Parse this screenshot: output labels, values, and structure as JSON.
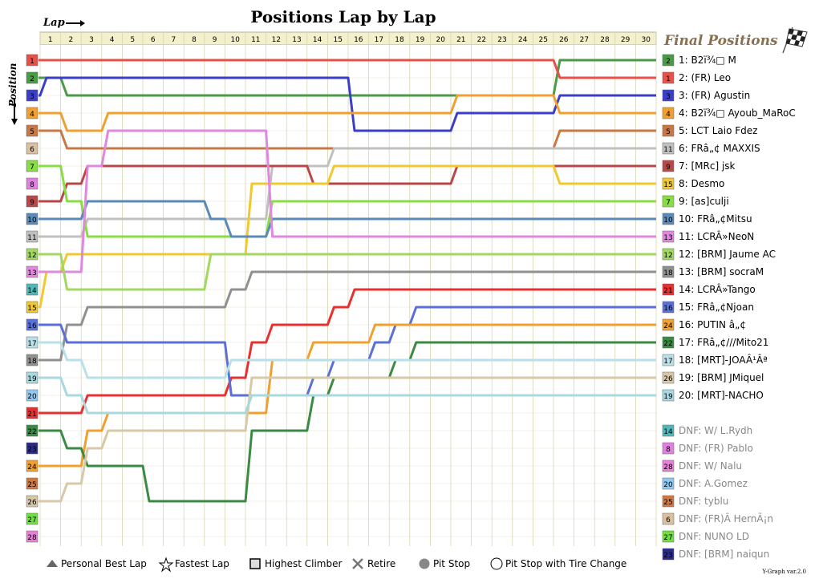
{
  "chart_data": {
    "type": "line",
    "title": "Positions Lap by Lap",
    "x_label": "Lap",
    "y_label": "Position",
    "laps": [
      1,
      2,
      3,
      4,
      5,
      6,
      7,
      8,
      9,
      10,
      11,
      12,
      13,
      14,
      15,
      16,
      17,
      18,
      19,
      20,
      21,
      22,
      23,
      24,
      25,
      26,
      27,
      28,
      29,
      30
    ],
    "positions": [
      1,
      2,
      3,
      4,
      5,
      6,
      7,
      8,
      9,
      10,
      11,
      12,
      13,
      14,
      15,
      16,
      17,
      18,
      19,
      20,
      21,
      22,
      23,
      24,
      25,
      26,
      27,
      28
    ],
    "final_title": "Final Positions",
    "grid_start": [
      "1",
      "2",
      "3",
      "4",
      "5",
      "6",
      "7",
      "8",
      "9",
      "10",
      "11",
      "12",
      "13",
      "14",
      "15",
      "16",
      "17",
      "18",
      "19",
      "20",
      "21",
      "22",
      "23",
      "24",
      "25",
      "26",
      "27",
      "28"
    ],
    "finishers": [
      {
        "pos": "1",
        "grid": "2",
        "name": "B2ï¾□ M",
        "color": "#4a9a48",
        "lap_pos": [
          2,
          3,
          3,
          3,
          3,
          3,
          3,
          3,
          3,
          3,
          3,
          3,
          3,
          3,
          3,
          3,
          3,
          3,
          3,
          3,
          3,
          3,
          3,
          3,
          3,
          1,
          1,
          1,
          1,
          1
        ]
      },
      {
        "pos": "2",
        "grid": "1",
        "name": "(FR) Leo",
        "color": "#e8504a",
        "lap_pos": [
          1,
          1,
          1,
          1,
          1,
          1,
          1,
          1,
          1,
          1,
          1,
          1,
          1,
          1,
          1,
          1,
          1,
          1,
          1,
          1,
          1,
          1,
          1,
          1,
          1,
          2,
          2,
          2,
          2,
          2
        ]
      },
      {
        "pos": "3",
        "grid": "3",
        "name": "(FR) Agustin",
        "color": "#3a3ec8",
        "lap_pos": [
          2,
          2,
          2,
          2,
          2,
          2,
          2,
          2,
          2,
          2,
          2,
          2,
          2,
          2,
          2,
          5,
          5,
          5,
          5,
          5,
          4,
          4,
          4,
          4,
          4,
          3,
          3,
          3,
          3,
          3
        ]
      },
      {
        "pos": "4",
        "grid": "4",
        "name": "B2ï¾□ Ayoub_MaRoC",
        "color": "#f0a030",
        "lap_pos": [
          4,
          5,
          5,
          4,
          4,
          4,
          4,
          4,
          4,
          4,
          4,
          4,
          4,
          4,
          4,
          4,
          4,
          4,
          4,
          4,
          3,
          3,
          3,
          3,
          3,
          4,
          4,
          4,
          4,
          4
        ]
      },
      {
        "pos": "5",
        "grid": "5",
        "name": "LCT Laio Fdez",
        "color": "#c87844",
        "lap_pos": [
          5,
          6,
          6,
          6,
          6,
          6,
          6,
          6,
          6,
          6,
          6,
          6,
          6,
          6,
          6,
          6,
          6,
          6,
          6,
          6,
          6,
          6,
          6,
          6,
          6,
          5,
          5,
          5,
          5,
          5
        ]
      },
      {
        "pos": "6",
        "grid": "11",
        "name": "FRâ„¢ MAXXIS",
        "color": "#c0c0c0",
        "lap_pos": [
          11,
          11,
          10,
          10,
          10,
          10,
          10,
          10,
          10,
          10,
          10,
          7,
          7,
          7,
          6,
          6,
          6,
          6,
          6,
          6,
          6,
          6,
          6,
          6,
          6,
          6,
          6,
          6,
          6,
          6
        ]
      },
      {
        "pos": "7",
        "grid": "9",
        "name": "[MRc] jsk",
        "color": "#b84848",
        "lap_pos": [
          9,
          8,
          7,
          7,
          7,
          7,
          7,
          7,
          7,
          7,
          7,
          7,
          7,
          8,
          8,
          8,
          8,
          8,
          8,
          8,
          7,
          7,
          7,
          7,
          7,
          7,
          7,
          7,
          7,
          7
        ]
      },
      {
        "pos": "8",
        "grid": "15",
        "name": "Desmo",
        "color": "#f0c830",
        "lap_pos": [
          13,
          12,
          12,
          12,
          12,
          12,
          12,
          12,
          12,
          12,
          8,
          8,
          8,
          8,
          7,
          7,
          7,
          7,
          7,
          7,
          7,
          7,
          7,
          7,
          7,
          8,
          8,
          8,
          8,
          8
        ]
      },
      {
        "pos": "9",
        "grid": "7",
        "name": "[as]culji",
        "color": "#88dd44",
        "lap_pos": [
          7,
          9,
          11,
          11,
          11,
          11,
          11,
          11,
          11,
          11,
          11,
          9,
          9,
          9,
          9,
          9,
          9,
          9,
          9,
          9,
          9,
          9,
          9,
          9,
          9,
          9,
          9,
          9,
          9,
          9
        ]
      },
      {
        "pos": "10",
        "grid": "10",
        "name": "FRâ„¢Mitsu",
        "color": "#5a8ab8",
        "lap_pos": [
          10,
          10,
          9,
          9,
          9,
          9,
          9,
          9,
          10,
          11,
          11,
          10,
          10,
          10,
          10,
          10,
          10,
          10,
          10,
          10,
          10,
          10,
          10,
          10,
          10,
          10,
          10,
          10,
          10,
          10
        ]
      },
      {
        "pos": "11",
        "grid": "13",
        "name": "LCRÂ»NeoN",
        "color": "#e088dd",
        "lap_pos": [
          13,
          13,
          7,
          5,
          5,
          5,
          5,
          5,
          5,
          5,
          5,
          11,
          11,
          11,
          11,
          11,
          11,
          11,
          11,
          11,
          11,
          11,
          11,
          11,
          11,
          11,
          11,
          11,
          11,
          11
        ]
      },
      {
        "pos": "12",
        "grid": "12",
        "name": "[BRM] Jaume AC",
        "color": "#a0d860",
        "lap_pos": [
          12,
          14,
          14,
          14,
          14,
          14,
          14,
          14,
          12,
          12,
          12,
          12,
          12,
          12,
          12,
          12,
          12,
          12,
          12,
          12,
          12,
          12,
          12,
          12,
          12,
          12,
          12,
          12,
          12,
          12
        ]
      },
      {
        "pos": "13",
        "grid": "18",
        "name": "[BRM] socraM",
        "color": "#909090",
        "lap_pos": [
          18,
          16,
          15,
          15,
          15,
          15,
          15,
          15,
          15,
          14,
          13,
          13,
          13,
          13,
          13,
          13,
          13,
          13,
          13,
          13,
          13,
          13,
          13,
          13,
          13,
          13,
          13,
          13,
          13,
          13
        ]
      },
      {
        "pos": "14",
        "grid": "21",
        "name": "LCRÂ»Tango",
        "color": "#e83030",
        "lap_pos": [
          21,
          21,
          20,
          20,
          20,
          20,
          20,
          20,
          20,
          19,
          17,
          16,
          16,
          16,
          15,
          14,
          14,
          14,
          14,
          14,
          14,
          14,
          14,
          14,
          14,
          14,
          14,
          14,
          14,
          14
        ]
      },
      {
        "pos": "15",
        "grid": "16",
        "name": "FRâ„¢Njoan",
        "color": "#5a70d8",
        "lap_pos": [
          16,
          17,
          17,
          17,
          17,
          17,
          17,
          17,
          17,
          20,
          20,
          20,
          20,
          19,
          18,
          18,
          17,
          16,
          15,
          15,
          15,
          15,
          15,
          15,
          15,
          15,
          15,
          15,
          15,
          15
        ]
      },
      {
        "pos": "16",
        "grid": "24",
        "name": "PUTIN â„¢",
        "color": "#f0a030",
        "lap_pos": [
          24,
          24,
          22,
          21,
          21,
          21,
          21,
          21,
          21,
          21,
          21,
          18,
          18,
          17,
          17,
          17,
          16,
          16,
          16,
          16,
          16,
          16,
          16,
          16,
          16,
          16,
          16,
          16,
          16,
          16
        ]
      },
      {
        "pos": "17",
        "grid": "22",
        "name": "FRâ„¢///Mito21",
        "color": "#3a8a44",
        "lap_pos": [
          22,
          23,
          24,
          24,
          24,
          26,
          26,
          26,
          26,
          26,
          22,
          22,
          22,
          20,
          19,
          19,
          19,
          18,
          17,
          17,
          17,
          17,
          17,
          17,
          17,
          17,
          17,
          17,
          17,
          17
        ]
      },
      {
        "pos": "18",
        "grid": "17",
        "name": "[MRT]-JOAÂ¹Âª",
        "color": "#b8e0e8",
        "lap_pos": [
          17,
          18,
          19,
          19,
          19,
          19,
          19,
          19,
          19,
          18,
          18,
          18,
          18,
          18,
          18,
          18,
          18,
          18,
          18,
          18,
          18,
          18,
          18,
          18,
          18,
          18,
          18,
          18,
          18,
          18
        ]
      },
      {
        "pos": "19",
        "grid": "26",
        "name": "[BRM] JMiquel",
        "color": "#d8c8a8",
        "lap_pos": [
          26,
          25,
          23,
          22,
          22,
          22,
          22,
          22,
          22,
          22,
          19,
          19,
          19,
          19,
          19,
          19,
          19,
          19,
          19,
          19,
          19,
          19,
          19,
          19,
          19,
          19,
          19,
          19,
          19,
          19
        ]
      },
      {
        "pos": "20",
        "grid": "19",
        "name": "[MRT]-NACHO",
        "color": "#a8d8e0",
        "lap_pos": [
          19,
          20,
          21,
          21,
          21,
          21,
          21,
          21,
          21,
          21,
          20,
          20,
          20,
          20,
          20,
          20,
          20,
          20,
          20,
          20,
          20,
          20,
          20,
          20,
          20,
          20,
          20,
          20,
          20,
          20
        ]
      }
    ],
    "dnf": [
      {
        "grid": "14",
        "name": "DNF: W/ L.Rydh",
        "color": "#50b8b8"
      },
      {
        "grid": "8",
        "name": "DNF: (FR) Pablo",
        "color": "#e080e0"
      },
      {
        "grid": "28",
        "name": "DNF: W/ Nalu",
        "color": "#e880d8"
      },
      {
        "grid": "20",
        "name": "DNF: A.Gomez",
        "color": "#90c8f0"
      },
      {
        "grid": "25",
        "name": "DNF: tyblu",
        "color": "#d07840"
      },
      {
        "grid": "6",
        "name": "DNF: (FR)Â HernÃ¡n",
        "color": "#d8c0a0"
      },
      {
        "grid": "27",
        "name": "DNF: NUNO LD",
        "color": "#70e040"
      },
      {
        "grid": "23",
        "name": "DNF: [BRM] naiqun",
        "color": "#2a2a8a"
      }
    ],
    "legend": [
      "Personal Best Lap",
      "Fastest Lap",
      "Highest Climber",
      "Retire",
      "Pit Stop",
      "Pit Stop with Tire Change"
    ],
    "version": "Y-Graph var.2.0"
  }
}
